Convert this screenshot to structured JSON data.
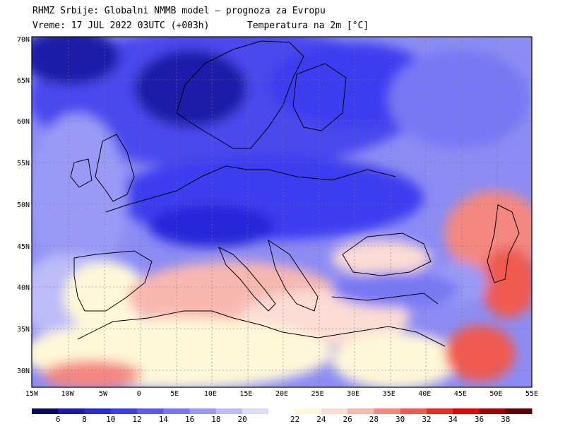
{
  "header": {
    "line1": "RHMZ Srbije: Globalni NMMB model — prognoza za Evropu",
    "line2": "Vreme: 17 JUL 2022 03UTC (+003h)",
    "line3": "Temperatura na 2m [°C]"
  },
  "map": {
    "lat_labels": [
      "70N",
      "65N",
      "60N",
      "55N",
      "50N",
      "45N",
      "40N",
      "35N",
      "30N"
    ],
    "lon_labels": [
      "15W",
      "10W",
      "5W",
      "0",
      "5E",
      "10E",
      "15E",
      "20E",
      "25E",
      "30E",
      "35E",
      "40E",
      "45E",
      "50E",
      "55E"
    ]
  },
  "legend": {
    "colors": [
      "#0a0a5c",
      "#1a1aa8",
      "#2828d8",
      "#3c3cf0",
      "#5a5af2",
      "#7878f4",
      "#9a9af6",
      "#bcbcf8",
      "#dcdcfa",
      "#ffffff",
      "#fff8d8",
      "#fcdcd4",
      "#f8b8b0",
      "#f48880",
      "#f05a50",
      "#ec2a20",
      "#e80000",
      "#a00000",
      "#5c0000"
    ],
    "labels": [
      "6",
      "8",
      "10",
      "12",
      "14",
      "16",
      "18",
      "20",
      "22",
      "24",
      "26",
      "28",
      "30",
      "32",
      "34",
      "36",
      "38"
    ]
  }
}
